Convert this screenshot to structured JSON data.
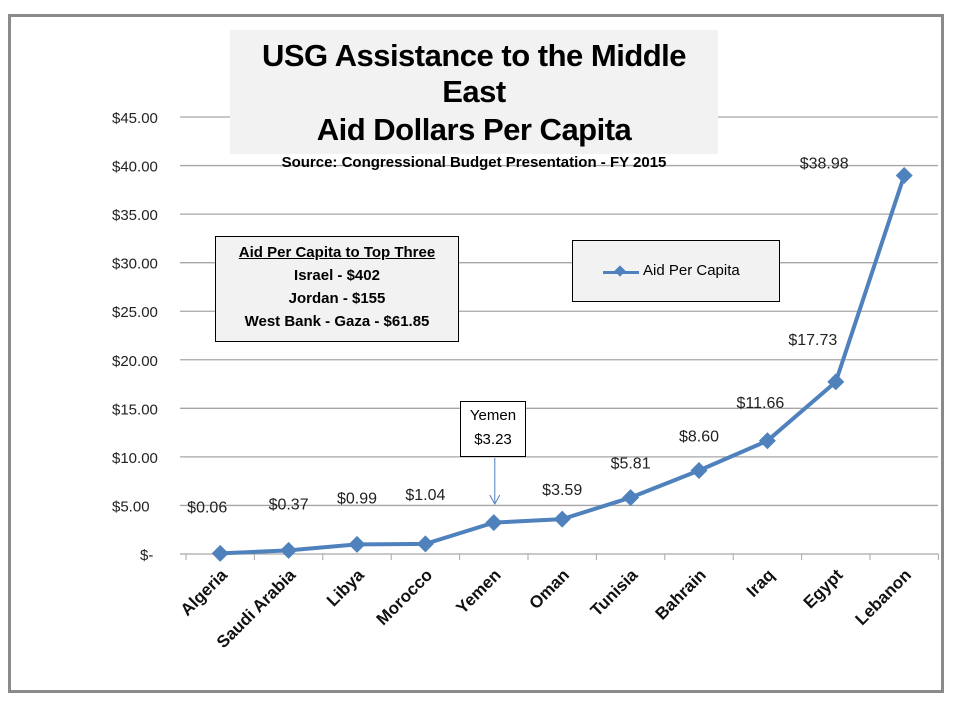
{
  "chart_data": {
    "type": "line",
    "title": "USG Assistance to the Middle East",
    "subtitle": "Aid Dollars Per Capita",
    "source": "Source: Congressional  Budget Presentation - FY 2015",
    "categories": [
      "Algeria",
      "Saudi Arabia",
      "Libya",
      "Morocco",
      "Yemen",
      "Oman",
      "Tunisia",
      "Bahrain",
      "Iraq",
      "Egypt",
      "Lebanon"
    ],
    "series": [
      {
        "name": "Aid Per Capita",
        "color": "#4f81bd",
        "values": [
          0.06,
          0.37,
          0.99,
          1.04,
          3.23,
          3.59,
          5.81,
          8.6,
          11.66,
          17.73,
          38.98
        ]
      }
    ],
    "data_labels": [
      "$0.06",
      "$0.37",
      "$0.99",
      "$1.04",
      "",
      "$3.59",
      "$5.81",
      "$8.60",
      "$11.66",
      "$17.73",
      "$38.98"
    ],
    "yticks": [
      0,
      5,
      10,
      15,
      20,
      25,
      30,
      35,
      40,
      45
    ],
    "ytick_labels": [
      "$-",
      "$5.00",
      "$10.00",
      "$15.00",
      "$20.00",
      "$25.00",
      "$30.00",
      "$35.00",
      "$40.00",
      "$45.00"
    ],
    "ylim": [
      0,
      45
    ],
    "grid": true,
    "legend": "Aid Per Capita",
    "annotations": {
      "top_three_title": "Aid Per Capita to Top Three",
      "top_three": [
        "Israel - $402",
        "Jordan - $155",
        "West Bank - Gaza - $61.85"
      ],
      "yemen_callout": [
        "Yemen",
        "$3.23"
      ]
    }
  }
}
